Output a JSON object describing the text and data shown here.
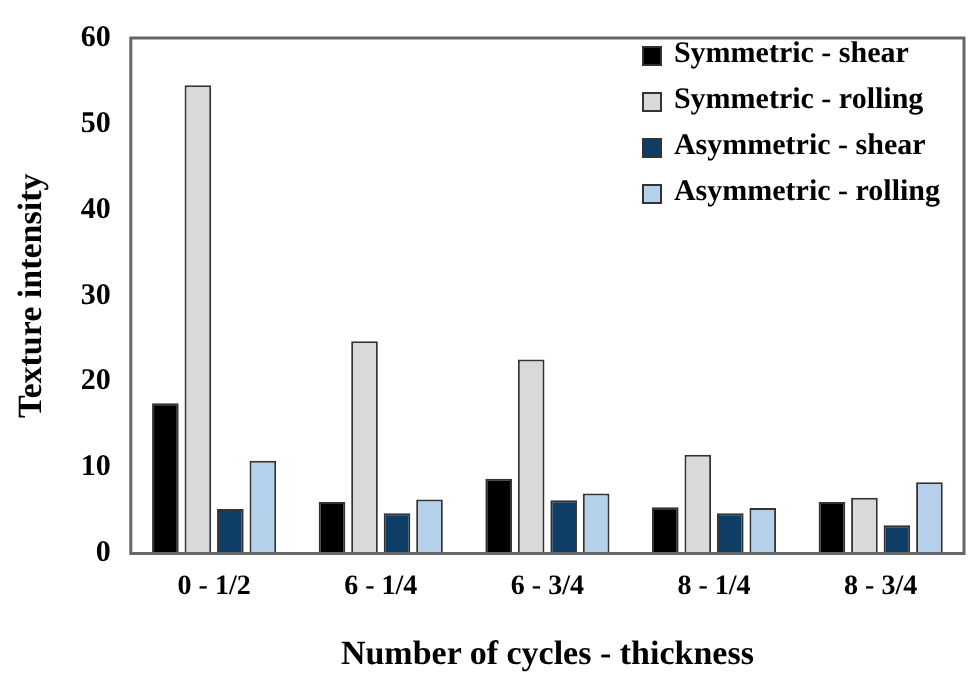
{
  "chart_data": {
    "type": "bar",
    "xlabel": "Number of cycles - thickness",
    "ylabel": "Texture intensity",
    "categories": [
      "0 - 1/2",
      "6 - 1/4",
      "6 - 3/4",
      "8 - 1/4",
      "8 - 3/4"
    ],
    "series": [
      {
        "name": "Symmetric - shear",
        "color": "#000000",
        "values": [
          17.5,
          6,
          8.7,
          5.4,
          6
        ]
      },
      {
        "name": "Symmetric - rolling",
        "color": "#d9d9d9",
        "values": [
          54.5,
          24.7,
          22.6,
          11.5,
          6.5
        ]
      },
      {
        "name": "Asymmetric - shear",
        "color": "#0e3d66",
        "values": [
          5.2,
          4.7,
          6.2,
          4.7,
          3.3
        ]
      },
      {
        "name": "Asymmetric - rolling",
        "color": "#b4d0ea",
        "values": [
          10.8,
          6.3,
          7,
          5.3,
          8.3
        ]
      }
    ],
    "ylim": [
      0,
      60
    ],
    "yticks": [
      0,
      10,
      20,
      30,
      40,
      50,
      60
    ],
    "grid": false,
    "legend": "top right"
  }
}
